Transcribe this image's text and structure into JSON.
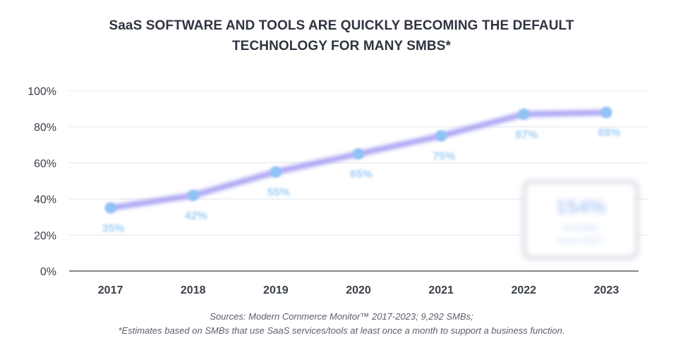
{
  "header": {
    "title_line1": "SaaS SOFTWARE AND TOOLS ARE QUICKLY BECOMING THE DEFAULT",
    "title_line2": "TECHNOLOGY FOR MANY SMBS*"
  },
  "footer": {
    "sources_line1": "Sources: Modern Commerce Monitor™ 2017-2023; 9,292 SMBs;",
    "sources_line2": "*Estimates based on SMBs that use SaaS services/tools at least once a month to support a business function."
  },
  "chart_data": {
    "type": "line",
    "categories": [
      "2017",
      "2018",
      "2019",
      "2020",
      "2021",
      "2022",
      "2023"
    ],
    "series": [
      {
        "values": [
          35,
          42,
          55,
          65,
          75,
          87,
          88
        ],
        "data_labels": [
          "35%",
          "42%",
          "55%",
          "65%",
          "75%",
          "87%",
          "88%"
        ]
      }
    ],
    "ylim": [
      0,
      100
    ],
    "yticks": [
      0,
      20,
      40,
      60,
      80,
      100
    ],
    "ytick_labels": [
      "0%",
      "20%",
      "40%",
      "60%",
      "80%",
      "100%"
    ],
    "grid": true,
    "colors": {
      "line": "#a9a3f3",
      "marker": "#8fc3f5",
      "label": "#9fcff6"
    },
    "callout": {
      "value": "154%",
      "text_line1": "increase",
      "text_line2": "since 2017"
    }
  }
}
